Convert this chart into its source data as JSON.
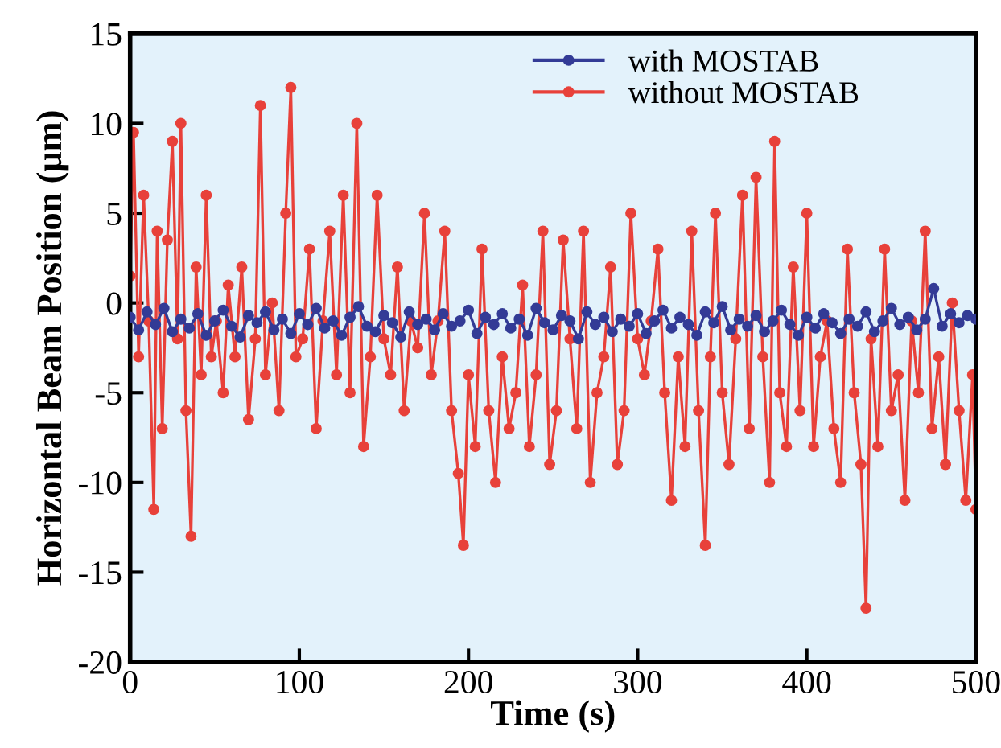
{
  "chart_data": {
    "type": "line",
    "xlabel": "Time (s)",
    "ylabel": "Horizontal Beam Position (μm)",
    "xlim": [
      0,
      500
    ],
    "ylim": [
      -20,
      15
    ],
    "xticks": [
      0,
      100,
      200,
      300,
      400,
      500
    ],
    "yticks": [
      -20,
      -15,
      -10,
      -5,
      0,
      5,
      10,
      15
    ],
    "grid": false,
    "legend": "top",
    "marker": "circle",
    "line_style": "solid",
    "series": [
      {
        "name": "with MOSTAB",
        "color": "#333b96",
        "x": [
          0,
          5,
          10,
          15,
          20,
          25,
          30,
          35,
          40,
          45,
          50,
          55,
          60,
          65,
          70,
          75,
          80,
          85,
          90,
          95,
          100,
          105,
          110,
          115,
          120,
          125,
          130,
          135,
          140,
          145,
          150,
          155,
          160,
          165,
          170,
          175,
          180,
          185,
          190,
          195,
          200,
          205,
          210,
          215,
          220,
          225,
          230,
          235,
          240,
          245,
          250,
          255,
          260,
          265,
          270,
          275,
          280,
          285,
          290,
          295,
          300,
          305,
          310,
          315,
          320,
          325,
          330,
          335,
          340,
          345,
          350,
          355,
          360,
          365,
          370,
          375,
          380,
          385,
          390,
          395,
          400,
          405,
          410,
          415,
          420,
          425,
          430,
          435,
          440,
          445,
          450,
          455,
          460,
          465,
          470,
          475,
          480,
          485,
          490,
          495,
          500
        ],
        "values": [
          -0.8,
          -1.5,
          -0.5,
          -1.2,
          -0.3,
          -1.6,
          -0.9,
          -1.4,
          -0.6,
          -1.8,
          -1.0,
          -0.4,
          -1.3,
          -1.9,
          -0.7,
          -1.1,
          -0.5,
          -1.5,
          -0.9,
          -1.7,
          -0.6,
          -1.2,
          -0.3,
          -1.4,
          -1.0,
          -1.8,
          -0.8,
          -0.2,
          -1.3,
          -1.6,
          -0.7,
          -1.1,
          -1.9,
          -0.5,
          -1.2,
          -0.9,
          -1.5,
          -0.6,
          -1.3,
          -1.0,
          -0.4,
          -1.7,
          -0.8,
          -1.2,
          -0.6,
          -1.4,
          -0.9,
          -1.8,
          -0.3,
          -1.1,
          -1.5,
          -0.7,
          -1.0,
          -2.0,
          -0.5,
          -1.2,
          -0.8,
          -1.6,
          -0.9,
          -1.3,
          -0.6,
          -1.7,
          -1.0,
          -0.4,
          -1.4,
          -0.8,
          -1.2,
          -1.8,
          -0.5,
          -1.1,
          -0.2,
          -1.5,
          -0.9,
          -1.3,
          -0.7,
          -1.6,
          -1.0,
          -0.4,
          -1.2,
          -1.8,
          -0.8,
          -1.4,
          -0.6,
          -1.1,
          -1.7,
          -0.9,
          -1.3,
          -0.5,
          -1.6,
          -1.0,
          -0.3,
          -1.2,
          -0.8,
          -1.5,
          -0.9,
          0.8,
          -1.3,
          -0.6,
          -1.1,
          -0.7,
          -0.9
        ]
      },
      {
        "name": "without MOSTAB",
        "color": "#e8413a",
        "x": [
          0,
          2,
          5,
          8,
          11,
          14,
          16,
          19,
          22,
          25,
          28,
          30,
          33,
          36,
          39,
          42,
          45,
          48,
          51,
          55,
          58,
          62,
          66,
          70,
          74,
          77,
          80,
          84,
          88,
          92,
          95,
          98,
          102,
          106,
          110,
          114,
          118,
          122,
          126,
          130,
          134,
          138,
          142,
          146,
          150,
          154,
          158,
          162,
          166,
          170,
          174,
          178,
          182,
          186,
          190,
          194,
          197,
          200,
          204,
          208,
          212,
          216,
          220,
          224,
          228,
          232,
          236,
          240,
          244,
          248,
          252,
          256,
          260,
          264,
          268,
          272,
          276,
          280,
          284,
          288,
          292,
          296,
          300,
          304,
          308,
          312,
          316,
          320,
          324,
          328,
          332,
          336,
          340,
          343,
          346,
          350,
          354,
          358,
          362,
          366,
          370,
          374,
          378,
          381,
          384,
          388,
          392,
          396,
          400,
          404,
          408,
          412,
          416,
          420,
          424,
          428,
          432,
          435,
          438,
          442,
          446,
          450,
          454,
          458,
          462,
          466,
          470,
          474,
          478,
          482,
          486,
          490,
          494,
          498,
          500
        ],
        "values": [
          1.5,
          9.5,
          -3,
          6,
          -1,
          -11.5,
          4,
          -7,
          3.5,
          9,
          -2,
          10,
          -6,
          -13,
          2,
          -4,
          6,
          -3,
          -1,
          -5,
          1,
          -3,
          2,
          -6.5,
          -2,
          11,
          -4,
          0,
          -6,
          5,
          12,
          -3,
          -2,
          3,
          -7,
          -1,
          4,
          -4,
          6,
          -5,
          10,
          -8,
          -3,
          6,
          -2,
          -4,
          2,
          -6,
          -1,
          -2.5,
          5,
          -4,
          -1,
          4,
          -6,
          -9.5,
          -13.5,
          -4,
          -8,
          3,
          -6,
          -10,
          -3,
          -7,
          -5,
          1,
          -8,
          -4,
          4,
          -9,
          -6,
          3.5,
          -2,
          -7,
          4,
          -10,
          -5,
          -3,
          2,
          -9,
          -6,
          5,
          -2,
          -4,
          -1,
          3,
          -5,
          -11,
          -3,
          -8,
          4,
          -6,
          -13.5,
          -3,
          5,
          -5,
          -9,
          -2,
          6,
          -7,
          7,
          -3,
          -10,
          9,
          -5,
          -8,
          2,
          -6,
          5,
          -8,
          -3,
          -1,
          -7,
          -10,
          3,
          -5,
          -9,
          -17,
          -2,
          -8,
          3,
          -6,
          -4,
          -11,
          -1,
          -5,
          4,
          -7,
          -3,
          -9,
          0,
          -6,
          -11,
          -4,
          -11.5
        ]
      }
    ]
  }
}
